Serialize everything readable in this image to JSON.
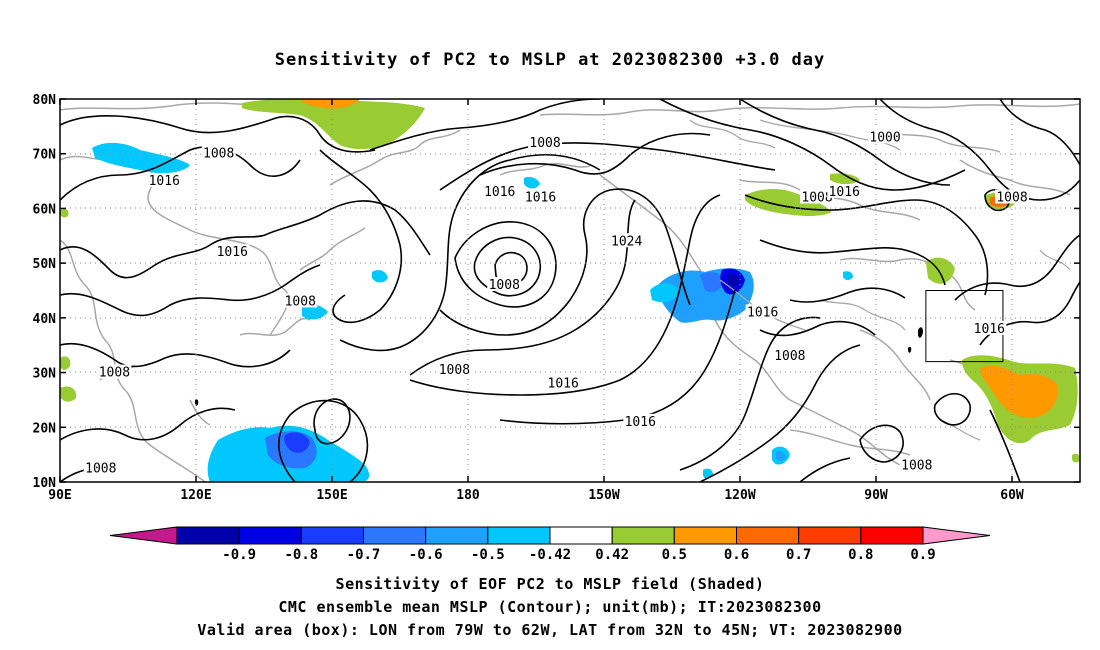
{
  "title": "Sensitivity of PC2 to MSLP at 2023082300 +3.0 day",
  "map": {
    "lat_labels": [
      "80N",
      "70N",
      "60N",
      "50N",
      "40N",
      "30N",
      "20N",
      "10N"
    ],
    "lon_labels": [
      "90E",
      "120E",
      "150E",
      "180",
      "150W",
      "120W",
      "90W",
      "60W"
    ],
    "contour_labels": [
      {
        "text": "1008",
        "lon": 125,
        "lat": 70
      },
      {
        "text": "1016",
        "lon": 113,
        "lat": 65
      },
      {
        "text": "1016",
        "lon": 128,
        "lat": 52
      },
      {
        "text": "1008",
        "lon": 143,
        "lat": 43
      },
      {
        "text": "1016",
        "lon": -159,
        "lat": 28
      },
      {
        "text": "1008",
        "lon": -183,
        "lat": 30.5
      },
      {
        "text": "1008",
        "lon": 102,
        "lat": 30
      },
      {
        "text": "1008",
        "lon": 99,
        "lat": 12.5
      },
      {
        "text": "1016",
        "lon": -173,
        "lat": 63
      },
      {
        "text": "1008",
        "lon": -163,
        "lat": 72
      },
      {
        "text": "1016",
        "lon": -164,
        "lat": 62
      },
      {
        "text": "1024",
        "lon": -145,
        "lat": 54
      },
      {
        "text": "1008",
        "lon": -172,
        "lat": 46
      },
      {
        "text": "1016",
        "lon": -142,
        "lat": 21
      },
      {
        "text": "1016",
        "lon": -115,
        "lat": 41
      },
      {
        "text": "1008",
        "lon": -109,
        "lat": 33
      },
      {
        "text": "1008",
        "lon": -103,
        "lat": 62
      },
      {
        "text": "1016",
        "lon": -97,
        "lat": 63
      },
      {
        "text": "1000",
        "lon": -88,
        "lat": 73
      },
      {
        "text": "1008",
        "lon": -60,
        "lat": 62
      },
      {
        "text": "1016",
        "lon": -65,
        "lat": 38
      },
      {
        "text": "1008",
        "lon": -81,
        "lat": 13
      }
    ],
    "valid_box": {
      "lon_min": -79,
      "lon_max": -62,
      "lat_min": 32,
      "lat_max": 45
    }
  },
  "colorbar": {
    "colors": [
      "#c21a8a",
      "#0000aa",
      "#0000e6",
      "#1a3cff",
      "#2a78ff",
      "#1ea0ff",
      "#00c8ff",
      "#ffffff",
      "#99cc33",
      "#ff9900",
      "#ff6a00",
      "#ff3c00",
      "#ff0000",
      "#ff99cc"
    ],
    "labels": [
      "-0.9",
      "-0.8",
      "-0.7",
      "-0.6",
      "-0.5",
      "-0.42",
      "0.42",
      "0.5",
      "0.6",
      "0.7",
      "0.8",
      "0.9"
    ]
  },
  "footer": {
    "line1": "Sensitivity of EOF PC2 to MSLP field (Shaded)",
    "line2": "CMC ensemble mean MSLP (Contour); unit(mb); IT:2023082300",
    "line3": "Valid area (box): LON from 79W to 62W, LAT from 32N to 45N; VT: 2023082900"
  }
}
